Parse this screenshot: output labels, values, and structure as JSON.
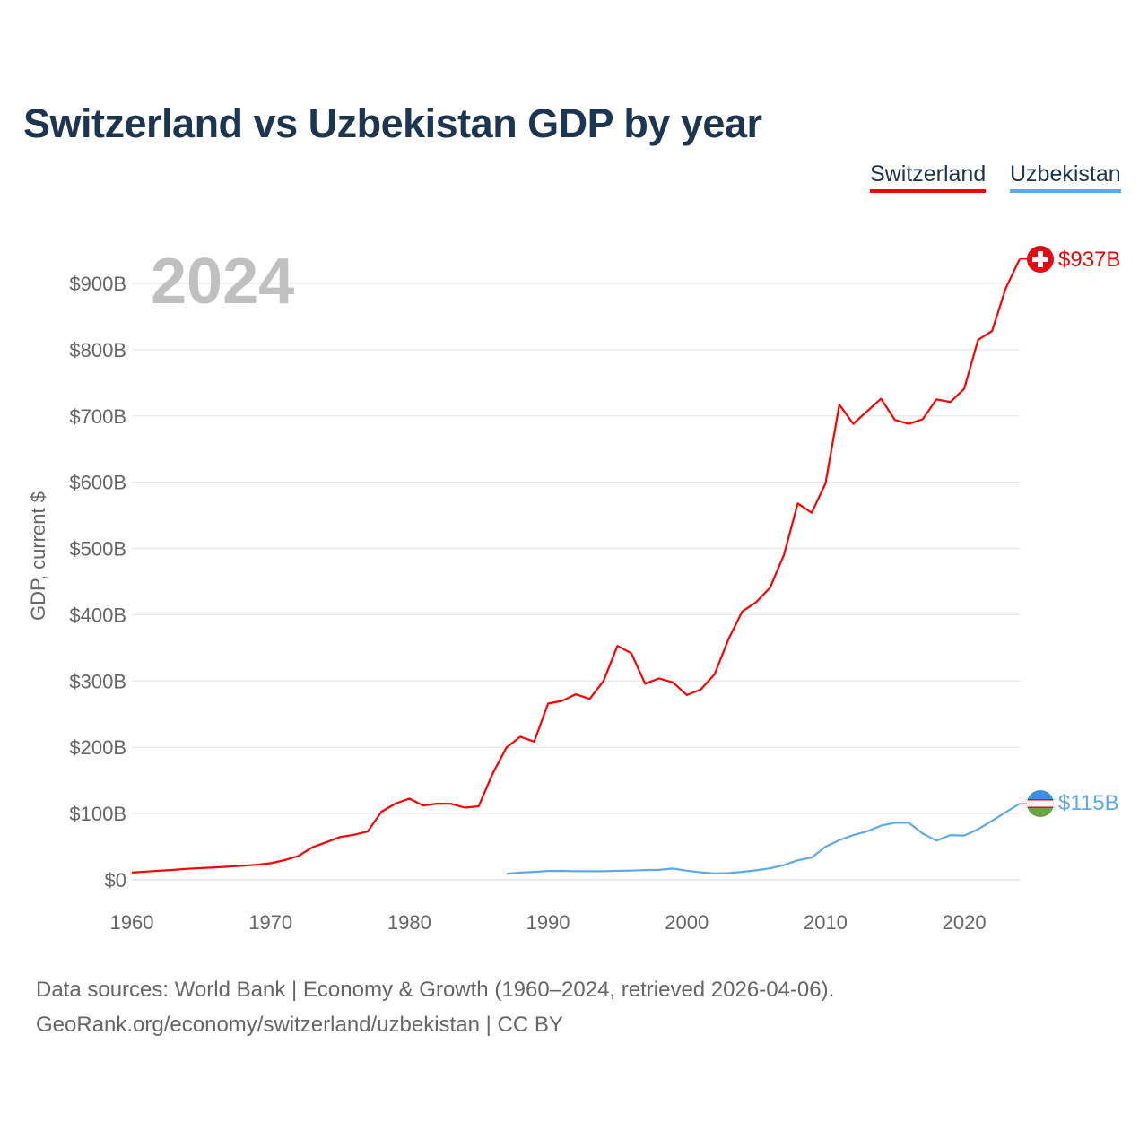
{
  "title": "Switzerland vs Uzbekistan GDP by year",
  "legend": [
    "Switzerland",
    "Uzbekistan"
  ],
  "year_label": "2024",
  "end_labels": {
    "switzerland": "$937B",
    "uzbekistan": "$115B"
  },
  "source_line1": "Data sources: World Bank | Economy & Growth (1960–2024, retrieved 2026-04-06).",
  "source_line2": "GeoRank.org/economy/switzerland/uzbekistan | CC BY",
  "colors": {
    "switzerland": "#ff0000",
    "uzbekistan": "#5ea8ec",
    "title": "#1c3553"
  },
  "chart_data": {
    "type": "line",
    "title": "Switzerland vs Uzbekistan GDP by year",
    "xlabel": "",
    "ylabel": "GDP, current $",
    "xlim": [
      1960,
      2024
    ],
    "ylim": [
      0,
      900
    ],
    "x_ticks": [
      1960,
      1970,
      1980,
      1990,
      2000,
      2010,
      2020
    ],
    "x_tick_labels": [
      "1960",
      "1970",
      "1980",
      "1990",
      "2000",
      "2010",
      "2020"
    ],
    "y_ticks": [
      0,
      100,
      200,
      300,
      400,
      500,
      600,
      700,
      800,
      900
    ],
    "y_tick_labels": [
      "$0",
      "$100B",
      "$200B",
      "$300B",
      "$400B",
      "$500B",
      "$600B",
      "$700B",
      "$800B",
      "$900B"
    ],
    "grid": true,
    "legend_position": "top-right",
    "series": [
      {
        "name": "Switzerland",
        "start_year": 1960,
        "values": [
          11,
          12.5,
          13.8,
          15,
          16.6,
          17.7,
          18.8,
          20,
          21.2,
          22.8,
          25,
          29.6,
          36,
          49,
          56.6,
          64.5,
          68,
          73,
          102.8,
          115,
          122.6,
          112,
          115,
          114.7,
          109,
          111,
          160,
          199.6,
          216,
          208.6,
          266,
          270,
          280,
          273,
          300,
          353,
          342,
          296,
          304,
          298,
          279,
          287,
          310,
          363,
          405,
          419,
          441,
          490,
          568,
          554,
          598,
          717,
          688,
          707,
          726,
          694,
          688,
          695,
          725,
          721,
          741,
          815,
          828,
          893,
          937
        ]
      },
      {
        "name": "Uzbekistan",
        "start_year": 1987,
        "values": [
          9,
          11,
          12,
          13.4,
          13.6,
          13,
          13,
          13,
          13.5,
          14,
          14.8,
          15,
          17,
          13.8,
          11.4,
          9.7,
          10.1,
          12,
          14.3,
          17.3,
          22.3,
          29.5,
          33.7,
          49.9,
          60,
          67.5,
          73.2,
          81.8,
          86.2,
          86.1,
          70,
          59.2,
          67.5,
          66.9,
          76.3,
          89.1,
          102,
          115
        ]
      }
    ]
  }
}
